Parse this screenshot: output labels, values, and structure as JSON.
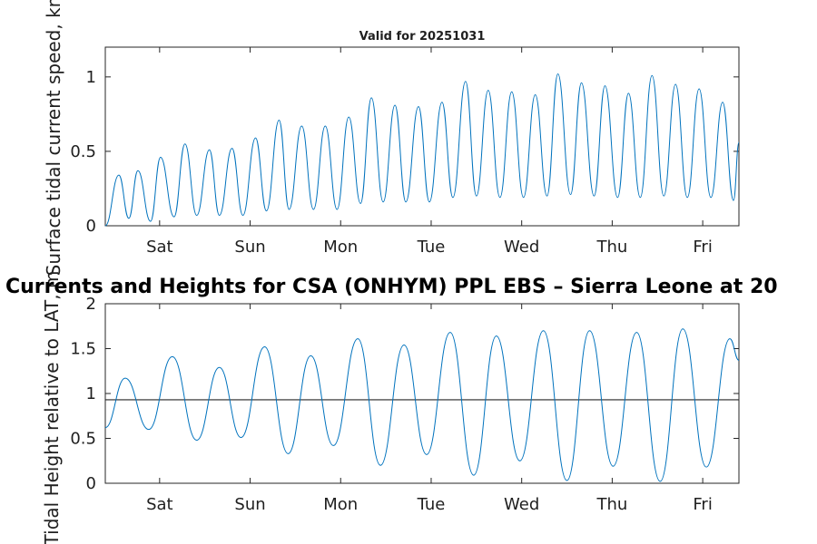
{
  "figure": {
    "main_title": "Currents and Heights for CSA (ONHYM) PPL EBS  – Sierra Leone at 20",
    "subtitle": "Valid for 20251031"
  },
  "colors": {
    "series": "#0072BD",
    "reference_line": "#262626",
    "axes": "#262626"
  },
  "chart_data": [
    {
      "type": "line",
      "name": "tidal-current-speed",
      "title": "Valid for 20251031",
      "ylabel": "Surface tidal current speed, kn",
      "xlabel": "",
      "xlim": [
        0,
        7
      ],
      "ylim": [
        0,
        1.2
      ],
      "yticks": [
        0,
        0.5,
        1
      ],
      "ytick_labels": [
        "0",
        "0.5",
        "1"
      ],
      "xticks": [
        0.6,
        1.6,
        2.6,
        3.6,
        4.6,
        5.6,
        6.6
      ],
      "xtick_labels": [
        "Sat",
        "Sun",
        "Mon",
        "Tue",
        "Wed",
        "Thu",
        "Fri"
      ],
      "grid": false,
      "x": [
        0,
        0.15,
        0.26,
        0.36,
        0.5,
        0.61,
        0.76,
        0.88,
        1.01,
        1.15,
        1.26,
        1.4,
        1.52,
        1.66,
        1.78,
        1.92,
        2.03,
        2.17,
        2.3,
        2.43,
        2.56,
        2.69,
        2.82,
        2.94,
        3.07,
        3.2,
        3.32,
        3.46,
        3.58,
        3.72,
        3.84,
        3.98,
        4.1,
        4.23,
        4.36,
        4.49,
        4.62,
        4.75,
        4.88,
        5,
        5.14,
        5.26,
        5.4,
        5.52,
        5.66,
        5.78,
        5.91,
        6.04,
        6.17,
        6.3,
        6.43,
        6.56,
        6.69,
        6.82,
        6.94,
        7
      ],
      "values": [
        0.0,
        0.34,
        0.05,
        0.37,
        0.03,
        0.46,
        0.06,
        0.55,
        0.07,
        0.51,
        0.07,
        0.52,
        0.07,
        0.59,
        0.1,
        0.71,
        0.11,
        0.67,
        0.11,
        0.67,
        0.11,
        0.73,
        0.15,
        0.86,
        0.16,
        0.81,
        0.16,
        0.8,
        0.16,
        0.83,
        0.19,
        0.97,
        0.2,
        0.91,
        0.19,
        0.9,
        0.19,
        0.88,
        0.2,
        1.02,
        0.21,
        0.96,
        0.2,
        0.94,
        0.19,
        0.89,
        0.19,
        1.01,
        0.2,
        0.95,
        0.19,
        0.92,
        0.19,
        0.83,
        0.17,
        0.56
      ]
    },
    {
      "type": "line",
      "name": "tidal-height",
      "title": "",
      "ylabel": "Tidal Height relative to LAT, m",
      "xlabel": "",
      "xlim": [
        0,
        7
      ],
      "ylim": [
        0,
        2
      ],
      "yticks": [
        0,
        0.5,
        1,
        1.5,
        2
      ],
      "ytick_labels": [
        "0",
        "0.5",
        "1",
        "1.5",
        "2"
      ],
      "xticks": [
        0.6,
        1.6,
        2.6,
        3.6,
        4.6,
        5.6,
        6.6
      ],
      "xtick_labels": [
        "Sat",
        "Sun",
        "Mon",
        "Tue",
        "Wed",
        "Thu",
        "Fri"
      ],
      "grid": false,
      "reference_line": 0.93,
      "x": [
        0,
        0.22,
        0.48,
        0.74,
        1.01,
        1.26,
        1.5,
        1.76,
        2.02,
        2.27,
        2.52,
        2.79,
        3.04,
        3.3,
        3.55,
        3.81,
        4.07,
        4.32,
        4.58,
        4.84,
        5.1,
        5.35,
        5.61,
        5.87,
        6.13,
        6.38,
        6.64,
        6.9,
        7
      ],
      "values": [
        0.62,
        1.17,
        0.6,
        1.41,
        0.48,
        1.29,
        0.51,
        1.52,
        0.33,
        1.42,
        0.42,
        1.61,
        0.2,
        1.54,
        0.32,
        1.68,
        0.09,
        1.64,
        0.25,
        1.7,
        0.03,
        1.7,
        0.19,
        1.68,
        0.02,
        1.72,
        0.18,
        1.61,
        1.37
      ]
    }
  ]
}
